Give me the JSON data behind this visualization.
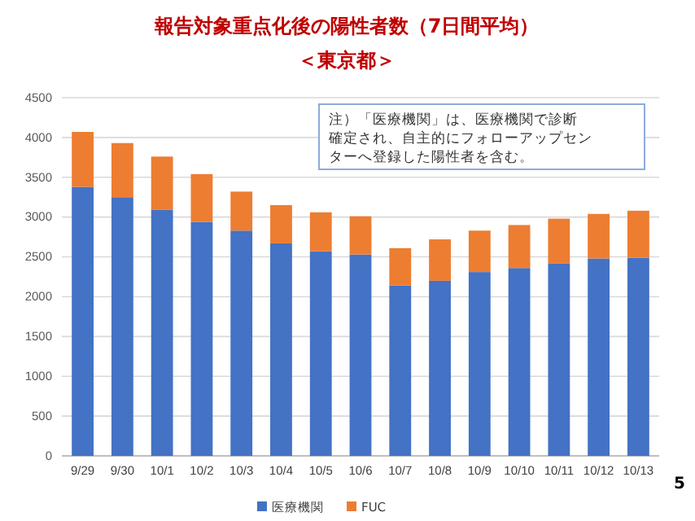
{
  "chart_data": {
    "type": "bar",
    "stacked": true,
    "title": "報告対象重点化後の陽性者数（7日間平均）",
    "subtitle": "＜東京都＞",
    "categories": [
      "9/29",
      "9/30",
      "10/1",
      "10/2",
      "10/3",
      "10/4",
      "10/5",
      "10/6",
      "10/7",
      "10/8",
      "10/9",
      "10/10",
      "10/11",
      "10/12",
      "10/13"
    ],
    "series": [
      {
        "name": "医療機関",
        "color": "#4472c4",
        "values": [
          3380,
          3250,
          3090,
          2940,
          2830,
          2670,
          2570,
          2530,
          2140,
          2200,
          2310,
          2360,
          2420,
          2480,
          2490
        ]
      },
      {
        "name": "FUC",
        "color": "#ed7d31",
        "values": [
          690,
          680,
          670,
          600,
          490,
          480,
          490,
          480,
          470,
          520,
          520,
          540,
          560,
          560,
          590
        ]
      }
    ],
    "ylim": [
      0,
      4500
    ],
    "yticks": [
      0,
      500,
      1000,
      1500,
      2000,
      2500,
      3000,
      3500,
      4000,
      4500
    ],
    "grid": "y",
    "legend": "bottom",
    "annotations": [
      "注）「医療機関」は、医療機関で診断確定され、自主的にフォローアップセンターへ登録した陽性者を含む。",
      "5"
    ]
  }
}
